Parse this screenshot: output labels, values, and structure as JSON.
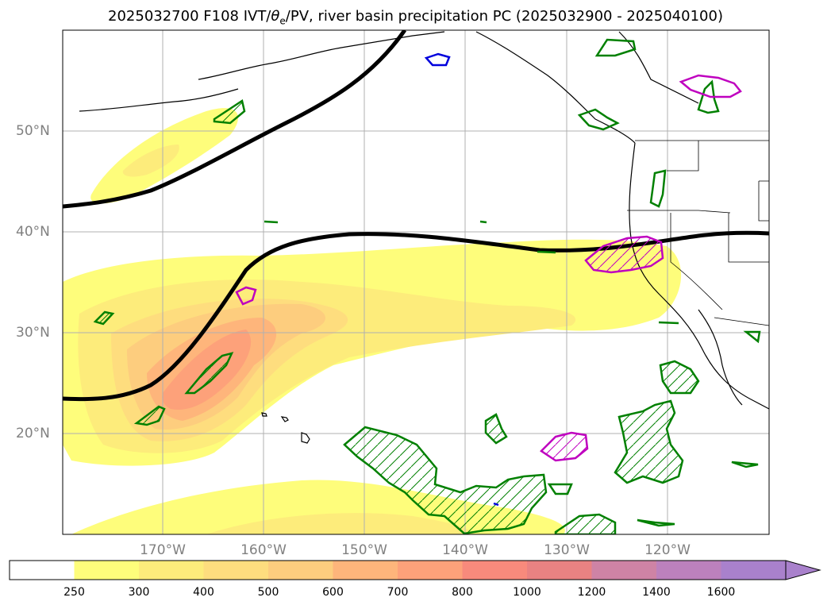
{
  "title_prefix": "2025032700 F108 IVT/",
  "title_theta": "θ",
  "title_sub": "e",
  "title_suffix": "/PV, river basin precipitation PC (2025032900 - 2025040100)",
  "map": {
    "lon_range": [
      -180,
      -110
    ],
    "lat_range": [
      10,
      60
    ],
    "lat_labels": [
      {
        "lat": 50,
        "label": "50°N"
      },
      {
        "lat": 40,
        "label": "40°N"
      },
      {
        "lat": 30,
        "label": "30°N"
      },
      {
        "lat": 20,
        "label": "20°N"
      }
    ],
    "lon_labels": [
      {
        "lon": -170,
        "label": "170°W"
      },
      {
        "lon": -160,
        "label": "160°W"
      },
      {
        "lon": -150,
        "label": "150°W"
      },
      {
        "lon": -140,
        "label": "140°W"
      },
      {
        "lon": -130,
        "label": "130°W"
      },
      {
        "lon": -120,
        "label": "120°W"
      }
    ]
  },
  "colorbar": {
    "ticks": [
      "250",
      "300",
      "400",
      "500",
      "600",
      "700",
      "800",
      "1000",
      "1200",
      "1400",
      "1600"
    ],
    "colors": [
      "#ffffff",
      "#fefd7b",
      "#fdec7b",
      "#fedd7e",
      "#fdcd7e",
      "#feb57b",
      "#fda17a",
      "#f88a7c",
      "#e98282",
      "#ce83a5",
      "#bc81bd",
      "#a981cc"
    ],
    "extend": "max"
  }
}
